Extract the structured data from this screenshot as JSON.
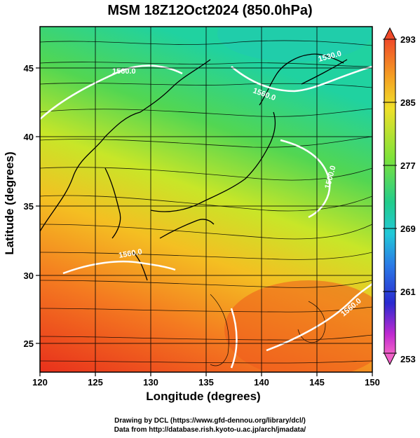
{
  "title": "MSM 18Z12Oct2024 (850.0hPa)",
  "axes": {
    "xlabel": "Longitude (degrees)",
    "ylabel": "Latitude  (degrees)",
    "xlim": [
      120,
      150
    ],
    "ylim": [
      22.4,
      47.6
    ],
    "xticks": [
      "120",
      "125",
      "130",
      "135",
      "140",
      "145",
      "150"
    ],
    "yticks": [
      "25",
      "30",
      "35",
      "40",
      "45"
    ]
  },
  "colorbar": {
    "range": [
      253,
      293
    ],
    "ticks": [
      "293",
      "285",
      "277",
      "269",
      "261",
      "253"
    ]
  },
  "contour_labels": [
    "1560.0",
    "1560.0",
    "1530.0",
    "1500.0",
    "1560.0",
    "1560.0"
  ],
  "credits": {
    "line1": "Drawing by DCL (https://www.gfd-dennou.org/library/dcl/)",
    "line2": "Data from http://database.rish.kyoto-u.ac.jp/arch/jmadata/"
  }
}
